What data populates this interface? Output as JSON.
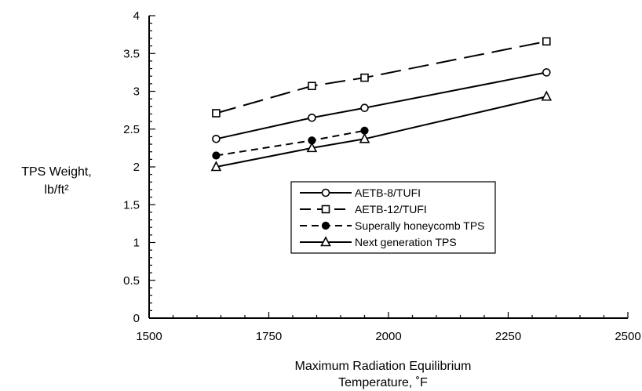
{
  "chart_data": {
    "type": "line",
    "title": "",
    "xlabel_line1": "Maximum Radiation Equilibrium",
    "xlabel_line2": "Temperature, ˚F",
    "ylabel_line1": "TPS Weight,",
    "ylabel_line2": "lb/ft²",
    "xlim": [
      1500,
      2500
    ],
    "ylim": [
      0,
      4
    ],
    "xticks": [
      "1500",
      "1750",
      "2000",
      "2250",
      "2500"
    ],
    "yticks": [
      "0",
      "0.5",
      "1",
      "1.5",
      "2",
      "2.5",
      "3",
      "3.5",
      "4"
    ],
    "grid": false,
    "legend_position": "center-right",
    "series": [
      {
        "name": "AETB-8/TUFI",
        "marker": "circle-open",
        "line": "solid",
        "points": [
          [
            1640,
            2.37
          ],
          [
            1840,
            2.65
          ],
          [
            1950,
            2.78
          ],
          [
            2330,
            3.25
          ]
        ]
      },
      {
        "name": "AETB-12/TUFI",
        "marker": "square-open",
        "line": "long-dash",
        "points": [
          [
            1640,
            2.71
          ],
          [
            1840,
            3.07
          ],
          [
            1950,
            3.18
          ],
          [
            2330,
            3.66
          ]
        ]
      },
      {
        "name": "Superally honeycomb TPS",
        "marker": "circle-filled",
        "line": "short-dash",
        "points": [
          [
            1640,
            2.15
          ],
          [
            1840,
            2.35
          ],
          [
            1950,
            2.48
          ]
        ]
      },
      {
        "name": "Next generation TPS",
        "marker": "triangle-open",
        "line": "solid",
        "points": [
          [
            1640,
            2.0
          ],
          [
            1840,
            2.25
          ],
          [
            1950,
            2.37
          ],
          [
            2330,
            2.93
          ]
        ]
      }
    ]
  }
}
